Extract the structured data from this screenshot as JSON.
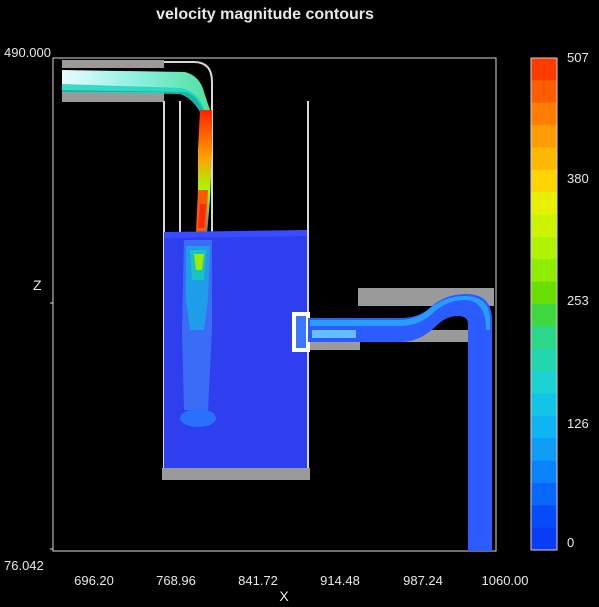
{
  "chart_data": {
    "type": "heatmap",
    "title": "velocity magnitude contours",
    "xlabel": "X",
    "ylabel": "Z",
    "xlim": [
      696.2,
      1060.0
    ],
    "ylim": [
      76.042,
      490.0
    ],
    "x_ticks": [
      "696.20",
      "768.96",
      "841.72",
      "914.48",
      "987.24",
      "1060.00"
    ],
    "y_ticks": [
      "490.000",
      "76.042"
    ],
    "colorbar": {
      "ticks": [
        "507",
        "380",
        "253",
        "126",
        "0"
      ],
      "range": [
        0,
        507
      ],
      "colors": [
        "#ff3b00",
        "#ff5e00",
        "#ff7d00",
        "#ff9d00",
        "#ffba00",
        "#ffd400",
        "#e6f000",
        "#ccf400",
        "#b0f200",
        "#90ec00",
        "#6ae000",
        "#3fd840",
        "#2ed68a",
        "#22d6b0",
        "#1ad2d2",
        "#12c4e8",
        "#10b4f2",
        "#0e9ef8",
        "#0a84fa",
        "#0868fc",
        "#064cfd",
        "#0a3cf8"
      ]
    }
  }
}
